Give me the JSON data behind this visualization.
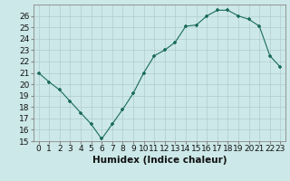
{
  "x": [
    0,
    1,
    2,
    3,
    4,
    5,
    6,
    7,
    8,
    9,
    10,
    11,
    12,
    13,
    14,
    15,
    16,
    17,
    18,
    19,
    20,
    21,
    22,
    23
  ],
  "y": [
    21.0,
    20.2,
    19.5,
    18.5,
    17.5,
    16.5,
    15.2,
    16.5,
    17.8,
    19.2,
    21.0,
    22.5,
    23.0,
    23.7,
    25.1,
    25.2,
    26.0,
    26.5,
    26.5,
    26.0,
    25.7,
    25.1,
    22.5,
    21.5
  ],
  "line_color": "#1a6b5a",
  "marker_color": "#1a6b5a",
  "bg_color": "#cce8e8",
  "grid_color": "#b0cccc",
  "xlabel": "Humidex (Indice chaleur)",
  "xlim": [
    -0.5,
    23.5
  ],
  "ylim": [
    15,
    27
  ],
  "yticks": [
    15,
    16,
    17,
    18,
    19,
    20,
    21,
    22,
    23,
    24,
    25,
    26
  ],
  "xticks": [
    0,
    1,
    2,
    3,
    4,
    5,
    6,
    7,
    8,
    9,
    10,
    11,
    12,
    13,
    14,
    15,
    16,
    17,
    18,
    19,
    20,
    21,
    22,
    23
  ],
  "xlabel_fontsize": 7.5,
  "tick_fontsize": 6.5,
  "line_width": 0.8,
  "marker_size": 3.5
}
